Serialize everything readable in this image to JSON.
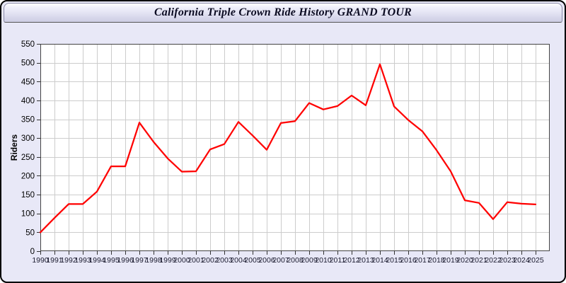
{
  "chart_data": {
    "type": "line",
    "title": "California Triple Crown Ride History GRAND TOUR",
    "xlabel": "",
    "ylabel": "Riders",
    "x": [
      1990,
      1991,
      1992,
      1993,
      1994,
      1995,
      1996,
      1997,
      1998,
      1999,
      2000,
      2001,
      2002,
      2003,
      2004,
      2005,
      2006,
      2007,
      2008,
      2009,
      2010,
      2011,
      2012,
      2013,
      2014,
      2015,
      2016,
      2017,
      2018,
      2019,
      2020,
      2021,
      2022,
      2023,
      2024,
      2025
    ],
    "series": [
      {
        "name": "Riders",
        "color": "#ff0000",
        "values": [
          50,
          88,
          125,
          125,
          158,
          225,
          225,
          341,
          290,
          246,
          211,
          212,
          270,
          284,
          343,
          307,
          269,
          340,
          345,
          393,
          376,
          385,
          413,
          387,
          496,
          384,
          348,
          318,
          268,
          212,
          135,
          128,
          85,
          130,
          126,
          124
        ]
      }
    ],
    "ylim": [
      0,
      550
    ],
    "ytick_step": 50,
    "grid": true,
    "legend_position": "none",
    "colors": {
      "page_bg": "#e8e8f7",
      "plot_bg": "#ffffff",
      "grid": "#cccccc",
      "axis_border": "#444444",
      "tick": "#333333",
      "x_label": "#1b1b2f",
      "y_label": "#000000",
      "line": "#ff0000"
    }
  }
}
